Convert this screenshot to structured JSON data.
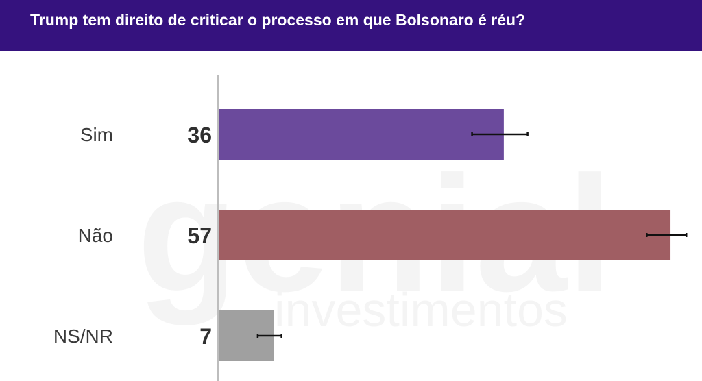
{
  "header": {
    "title": "Trump tem direito de criticar o processo em que Bolsonaro é réu?",
    "background": "#35127e"
  },
  "watermark": {
    "brand": "genial",
    "sub": "investimentos"
  },
  "chart_data": {
    "type": "bar",
    "orientation": "horizontal",
    "title": "Trump tem direito de criticar o processo em que Bolsonaro é réu?",
    "categories": [
      "Sim",
      "Não",
      "NS/NR"
    ],
    "values": [
      36,
      57,
      7
    ],
    "error_bars": [
      [
        32,
        39
      ],
      [
        54,
        59
      ],
      [
        5,
        8
      ]
    ],
    "colors": [
      "#6b4a9c",
      "#a05e63",
      "#a0a0a0"
    ],
    "xlim": [
      0,
      60
    ],
    "grid": false,
    "legend": "none",
    "xlabel": "",
    "ylabel": ""
  }
}
